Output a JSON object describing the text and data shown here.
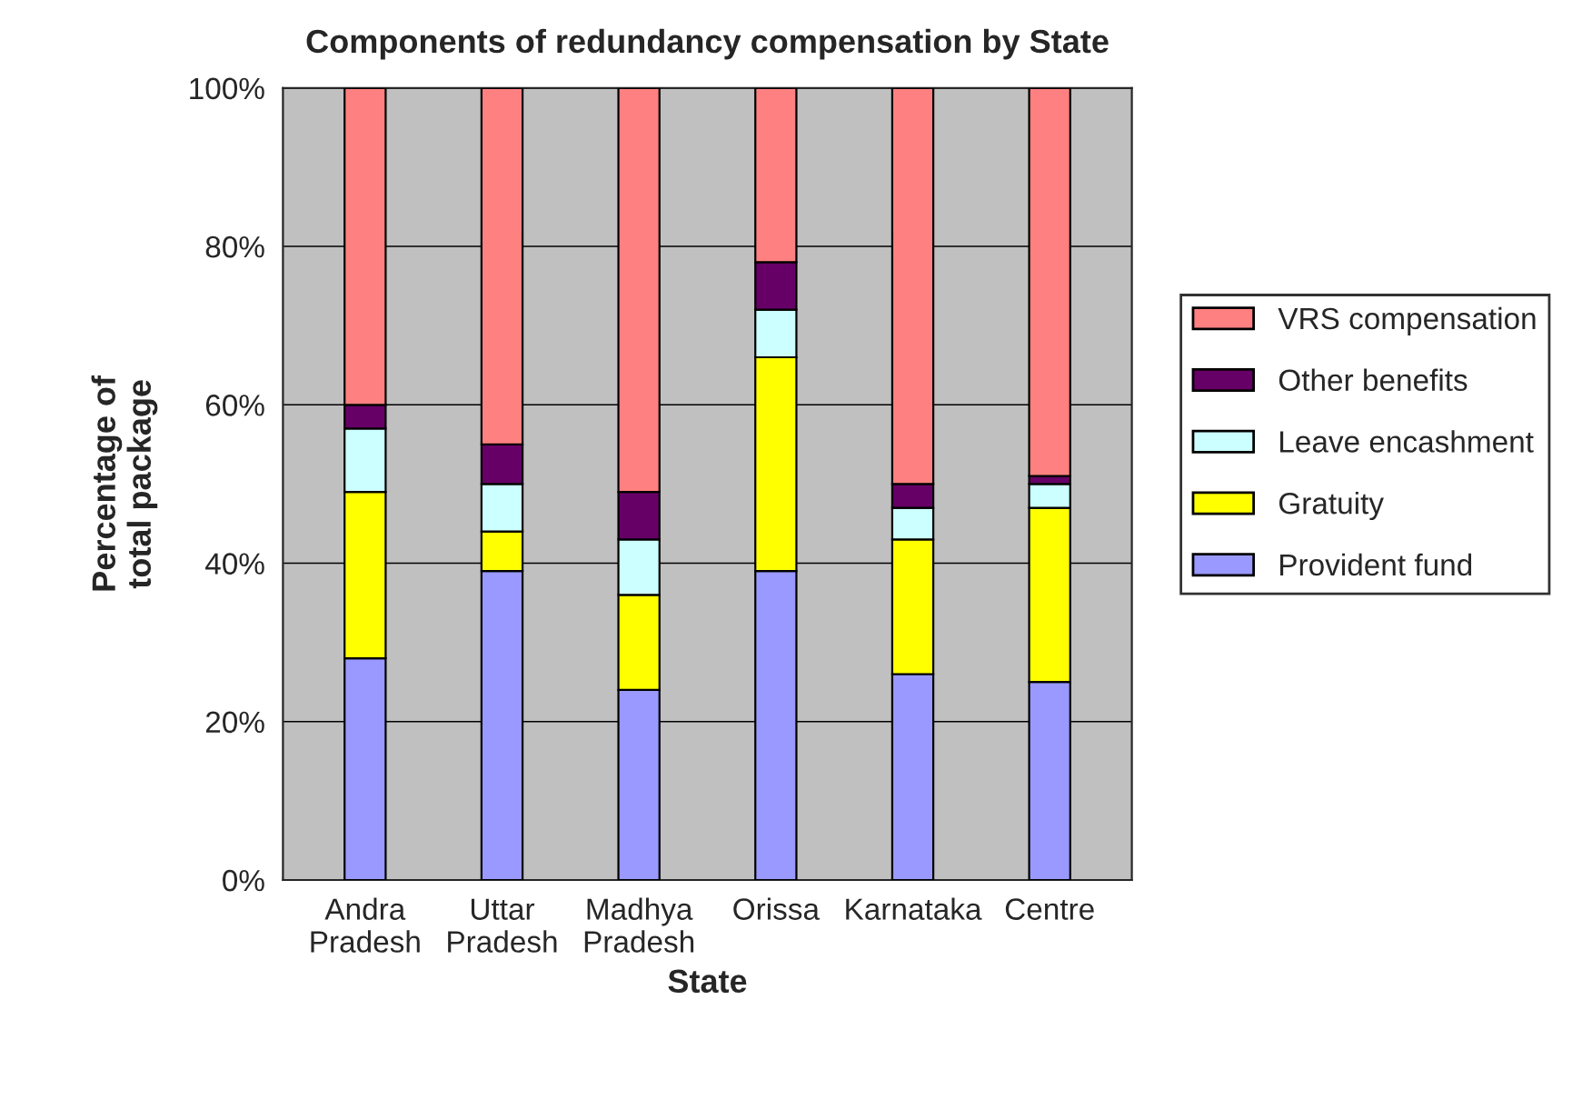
{
  "chart_data": {
    "type": "bar",
    "title": "Components of redundancy compensation by State",
    "xlabel": "State",
    "ylabel": "Percentage of\ntotal package",
    "categories": [
      "Andra\nPradesh",
      "Uttar\nPradesh",
      "Madhya\nPradesh",
      "Orissa",
      "Karnataka",
      "Centre"
    ],
    "stacked": true,
    "series": [
      {
        "name": "Provident fund",
        "color": "#9999ff",
        "values": [
          28,
          39,
          24,
          39,
          26,
          25
        ]
      },
      {
        "name": "Gratuity",
        "color": "#ffff00",
        "values": [
          21,
          5,
          12,
          27,
          17,
          22
        ]
      },
      {
        "name": "Leave encashment",
        "color": "#ccffff",
        "values": [
          8,
          6,
          7,
          6,
          4,
          3
        ]
      },
      {
        "name": "Other benefits",
        "color": "#660066",
        "values": [
          3,
          5,
          6,
          6,
          3,
          1
        ]
      },
      {
        "name": "VRS compensation",
        "color": "#ff8080",
        "values": [
          40,
          45,
          51,
          22,
          50,
          49
        ]
      }
    ],
    "ylim": [
      0,
      100
    ],
    "yticks": [
      {
        "value": 0,
        "label": "0%"
      },
      {
        "value": 20,
        "label": "20%"
      },
      {
        "value": 40,
        "label": "40%"
      },
      {
        "value": 60,
        "label": "60%"
      },
      {
        "value": 80,
        "label": "80%"
      },
      {
        "value": 100,
        "label": "100%"
      }
    ],
    "grid": "y",
    "legend": "right"
  }
}
